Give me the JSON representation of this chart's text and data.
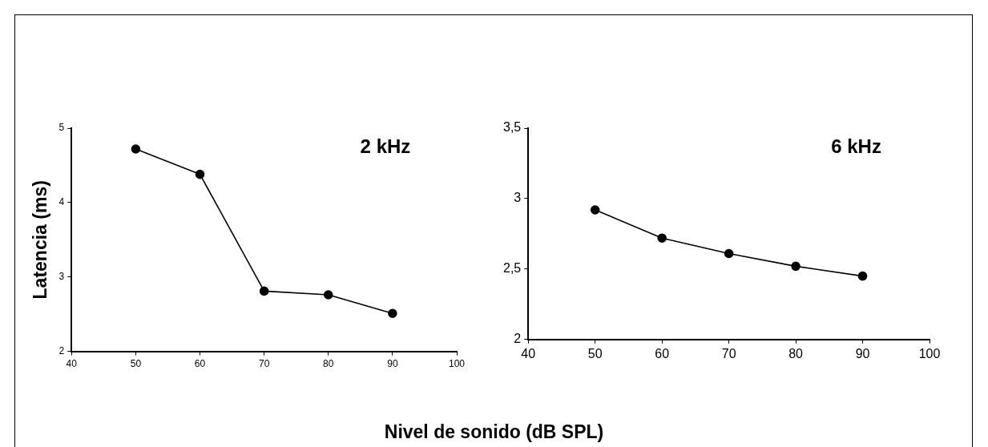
{
  "chart_data": [
    {
      "type": "line",
      "title": "2 kHz",
      "ylabel": "Latencia (ms)",
      "xlabel": "Nivel de sonido (dB SPL)",
      "x": [
        50,
        60,
        70,
        80,
        90
      ],
      "series": [
        {
          "color": "#000000",
          "values": [
            4.72,
            4.38,
            2.81,
            2.76,
            2.51
          ]
        }
      ],
      "xlim": [
        40,
        100
      ],
      "xticks": [
        40,
        50,
        60,
        70,
        80,
        90,
        100
      ],
      "ylim": [
        2,
        5
      ],
      "yticks": [
        2,
        3,
        4,
        5
      ],
      "grid": false,
      "legend": false,
      "marker": "circle",
      "line_style": "solid"
    },
    {
      "type": "line",
      "title": "6 kHz",
      "x": [
        50,
        60,
        70,
        80,
        90
      ],
      "series": [
        {
          "color": "#000000",
          "values": [
            2.92,
            2.72,
            2.61,
            2.52,
            2.45
          ]
        }
      ],
      "xlim": [
        40,
        100
      ],
      "xticks": [
        40,
        50,
        60,
        70,
        80,
        90,
        100
      ],
      "ylim": [
        2,
        3.5
      ],
      "yticks": [
        2,
        {
          "value": 2.5,
          "label": "2,5"
        },
        3,
        {
          "value": 3.5,
          "label": "3,5"
        }
      ],
      "grid": false,
      "legend": false,
      "marker": "circle",
      "line_style": "solid"
    }
  ]
}
